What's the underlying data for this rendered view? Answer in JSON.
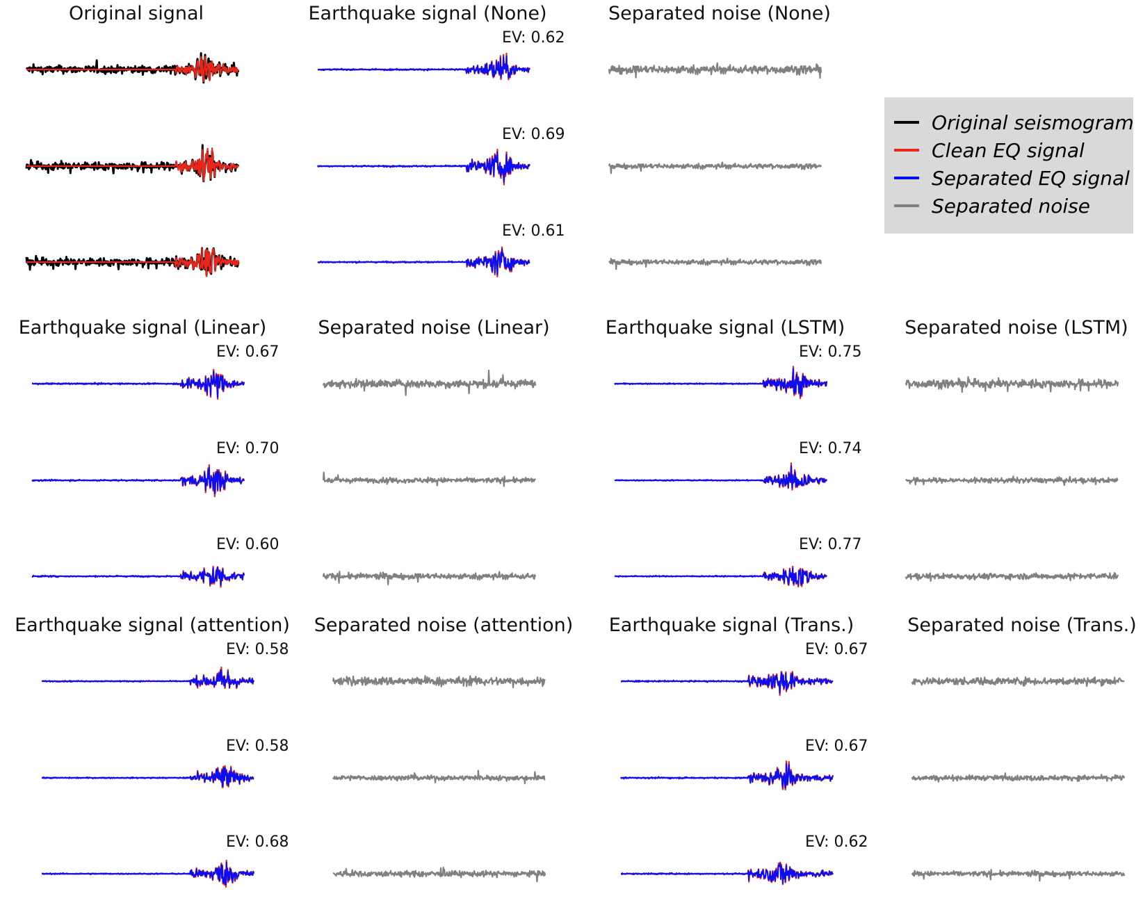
{
  "colors": {
    "original": "#000000",
    "clean": "#e8261b",
    "separated": "#0a0ef2",
    "noise": "#808080",
    "legend_bg": "#d9d9d9"
  },
  "legend": {
    "items": [
      {
        "label": "Original seismogram",
        "color": "#000000"
      },
      {
        "label": "Clean EQ signal",
        "color": "#e8261b"
      },
      {
        "label": "Separated EQ signal",
        "color": "#0a0ef2"
      },
      {
        "label": "Separated noise",
        "color": "#808080"
      }
    ]
  },
  "columns": [
    {
      "title": "Original signal",
      "type": "original"
    },
    {
      "title": "Earthquake signal (None)",
      "type": "eq"
    },
    {
      "title": "Separated noise (None)",
      "type": "noise"
    },
    {
      "title": "Earthquake signal (Linear)",
      "type": "eq"
    },
    {
      "title": "Separated noise (Linear)",
      "type": "noise"
    },
    {
      "title": "Earthquake signal (LSTM)",
      "type": "eq"
    },
    {
      "title": "Separated noise (LSTM)",
      "type": "noise"
    },
    {
      "title": "Earthquake signal (attention)",
      "type": "eq"
    },
    {
      "title": "Separated noise (attention)",
      "type": "noise"
    },
    {
      "title": "Earthquake signal (Trans.)",
      "type": "eq"
    },
    {
      "title": "Separated noise (Trans.)",
      "type": "noise"
    }
  ],
  "chart_data": {
    "type": "line",
    "ev_prefix": "EV: ",
    "ev_scores": {
      "None": [
        0.62,
        0.69,
        0.61
      ],
      "Linear": [
        0.67,
        0.7,
        0.6
      ],
      "LSTM": [
        0.75,
        0.74,
        0.77
      ],
      "attention": [
        0.58,
        0.58,
        0.68
      ],
      "Trans.": [
        0.67,
        0.67,
        0.62
      ]
    },
    "grid": false,
    "legend_position": "right"
  }
}
